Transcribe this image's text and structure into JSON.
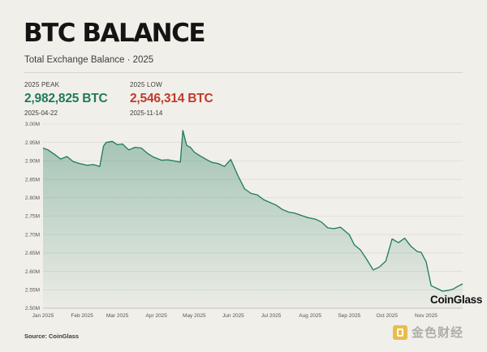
{
  "header": {
    "title": "BTC BALANCE",
    "subtitle": "Total Exchange Balance · 2025"
  },
  "stats": {
    "peak": {
      "label": "2025 PEAK",
      "value": "2,982,825 BTC",
      "date": "2025-04-22",
      "color": "#1f7a5c"
    },
    "low": {
      "label": "2025 LOW",
      "value": "2,546,314 BTC",
      "date": "2025-11-14",
      "color": "#c0392b"
    }
  },
  "chart_data": {
    "type": "area",
    "title": "",
    "xlabel": "",
    "ylabel": "",
    "ylim": [
      2500000,
      3000000
    ],
    "yticks": [
      {
        "value": 3000000,
        "label": "3.00M"
      },
      {
        "value": 2950000,
        "label": "2.95M"
      },
      {
        "value": 2900000,
        "label": "2.90M"
      },
      {
        "value": 2850000,
        "label": "2.85M"
      },
      {
        "value": 2800000,
        "label": "2.80M"
      },
      {
        "value": 2750000,
        "label": "2.75M"
      },
      {
        "value": 2700000,
        "label": "2.70M"
      },
      {
        "value": 2650000,
        "label": "2.65M"
      },
      {
        "value": 2600000,
        "label": "2.60M"
      },
      {
        "value": 2550000,
        "label": "2.55M"
      },
      {
        "value": 2500000,
        "label": "2.50M"
      }
    ],
    "xlim": [
      "2025-01-01",
      "2025-11-30"
    ],
    "xticks": [
      {
        "date": "2025-01-01",
        "label": "Jan 2025"
      },
      {
        "date": "2025-02-01",
        "label": "Feb 2025"
      },
      {
        "date": "2025-03-01",
        "label": "Mar 2025"
      },
      {
        "date": "2025-04-01",
        "label": "Apr 2025"
      },
      {
        "date": "2025-05-01",
        "label": "May 2025"
      },
      {
        "date": "2025-06-01",
        "label": "Jun 2025"
      },
      {
        "date": "2025-07-01",
        "label": "Jul 2025"
      },
      {
        "date": "2025-08-01",
        "label": "Aug 2025"
      },
      {
        "date": "2025-09-01",
        "label": "Sep 2025"
      },
      {
        "date": "2025-10-01",
        "label": "Oct 2025"
      },
      {
        "date": "2025-11-01",
        "label": "Nov 2025"
      }
    ],
    "grid": true,
    "line_color": "#1f7a5c",
    "fill_color": "#1f7a5c",
    "series": [
      {
        "dates": [
          "2025-01-01",
          "2025-01-05",
          "2025-01-10",
          "2025-01-15",
          "2025-01-20",
          "2025-01-25",
          "2025-01-30",
          "2025-02-05",
          "2025-02-10",
          "2025-02-15",
          "2025-02-18",
          "2025-02-20",
          "2025-02-25",
          "2025-03-01",
          "2025-03-05",
          "2025-03-10",
          "2025-03-15",
          "2025-03-20",
          "2025-03-25",
          "2025-03-30",
          "2025-04-05",
          "2025-04-10",
          "2025-04-15",
          "2025-04-20",
          "2025-04-22",
          "2025-04-25",
          "2025-04-28",
          "2025-05-01",
          "2025-05-05",
          "2025-05-10",
          "2025-05-15",
          "2025-05-20",
          "2025-05-25",
          "2025-05-30",
          "2025-06-05",
          "2025-06-10",
          "2025-06-15",
          "2025-06-20",
          "2025-06-25",
          "2025-07-01",
          "2025-07-05",
          "2025-07-10",
          "2025-07-15",
          "2025-07-20",
          "2025-07-25",
          "2025-07-30",
          "2025-08-05",
          "2025-08-10",
          "2025-08-15",
          "2025-08-20",
          "2025-08-25",
          "2025-09-01",
          "2025-09-05",
          "2025-09-10",
          "2025-09-15",
          "2025-09-20",
          "2025-09-25",
          "2025-09-30",
          "2025-10-05",
          "2025-10-10",
          "2025-10-15",
          "2025-10-20",
          "2025-10-25",
          "2025-10-28",
          "2025-11-01",
          "2025-11-05",
          "2025-11-10",
          "2025-11-14",
          "2025-11-18",
          "2025-11-22",
          "2025-11-26",
          "2025-11-30"
        ],
        "values": [
          2935000,
          2930000,
          2918000,
          2905000,
          2912000,
          2898000,
          2893000,
          2888000,
          2890000,
          2885000,
          2940000,
          2950000,
          2953000,
          2944000,
          2946000,
          2930000,
          2937000,
          2935000,
          2920000,
          2910000,
          2902000,
          2903000,
          2900000,
          2897000,
          2982825,
          2942000,
          2937000,
          2924000,
          2915000,
          2905000,
          2896000,
          2893000,
          2885000,
          2904000,
          2858000,
          2824000,
          2812000,
          2808000,
          2795000,
          2786000,
          2780000,
          2768000,
          2761000,
          2758000,
          2752000,
          2746000,
          2742000,
          2734000,
          2718000,
          2716000,
          2720000,
          2700000,
          2672000,
          2658000,
          2632000,
          2604000,
          2612000,
          2628000,
          2688000,
          2678000,
          2690000,
          2668000,
          2654000,
          2652000,
          2626000,
          2561000,
          2553000,
          2546314,
          2548000,
          2551000,
          2559000,
          2566000
        ]
      }
    ]
  },
  "branding": {
    "chart_brand": "CoinGlass",
    "source": "Source: CoinGlass",
    "watermark": "金色财经",
    "watermark_color": "#e8b83a"
  }
}
